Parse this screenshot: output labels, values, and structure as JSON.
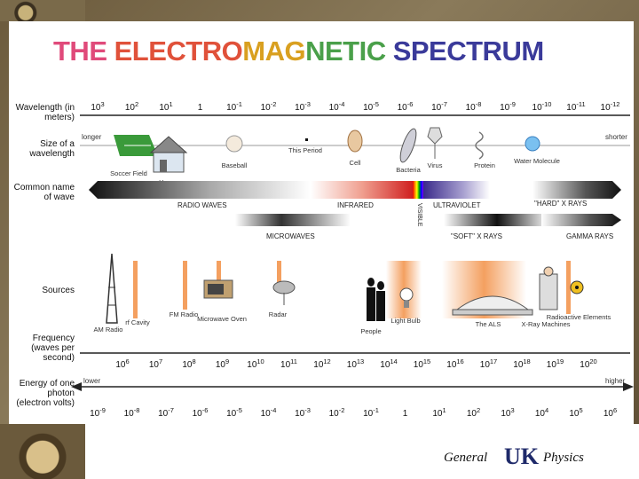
{
  "title_parts": [
    {
      "text": "THE ",
      "color": "#e04a7a"
    },
    {
      "text": "ELECTRO",
      "color": "#e0513a"
    },
    {
      "text": "MAG",
      "color": "#d9a020"
    },
    {
      "text": "NETIC ",
      "color": "#4aa04a"
    },
    {
      "text": "SPECTRUM",
      "color": "#3a3a9a"
    }
  ],
  "row_labels": {
    "wavelength": "Wavelength (in meters)",
    "size": "Size of a wavelength",
    "common_name": "Common name of wave",
    "sources": "Sources",
    "frequency": "Frequency (waves per second)",
    "energy": "Energy of one photon (electron volts)"
  },
  "wavelength_ticks": [
    "10^3",
    "10^2",
    "10^1",
    "1",
    "10^-1",
    "10^-2",
    "10^-3",
    "10^-4",
    "10^-5",
    "10^-6",
    "10^-7",
    "10^-8",
    "10^-9",
    "10^-10",
    "10^-11",
    "10^-12"
  ],
  "wavelength_ends": {
    "left": "longer",
    "right": "shorter"
  },
  "size_objects": [
    "Soccer Field",
    "House",
    "Baseball",
    "This Period",
    "Cell",
    "Bacteria",
    "Virus",
    "Protein",
    "Water Molecule"
  ],
  "wave_names": {
    "radio": "RADIO WAVES",
    "microwaves": "MICROWAVES",
    "infrared": "INFRARED",
    "visible": "VISIBLE",
    "ultraviolet": "ULTRAVIOLET",
    "soft_xrays": "\"SOFT\" X RAYS",
    "hard_xrays": "\"HARD\" X RAYS",
    "gamma": "GAMMA RAYS"
  },
  "sources": [
    "AM Radio",
    "FM Radio",
    "Microwave Oven",
    "Radar",
    "People",
    "Light Bulb",
    "The ALS",
    "X-Ray Machines",
    "Radioactive Elements"
  ],
  "source_extra": "rf Cavity",
  "frequency_ticks": [
    "10^6",
    "10^7",
    "10^8",
    "10^9",
    "10^10",
    "10^11",
    "10^12",
    "10^13",
    "10^14",
    "10^15",
    "10^16",
    "10^17",
    "10^18",
    "10^19",
    "10^20"
  ],
  "energy_ticks": [
    "10^-9",
    "10^-8",
    "10^-7",
    "10^-6",
    "10^-5",
    "10^-4",
    "10^-3",
    "10^-2",
    "10^-1",
    "1",
    "10^1",
    "10^2",
    "10^3",
    "10^4",
    "10^5",
    "10^6"
  ],
  "energy_ends": {
    "left": "lower",
    "right": "higher"
  },
  "footer": {
    "left": "General",
    "logo": "UK",
    "right": "Physics"
  }
}
